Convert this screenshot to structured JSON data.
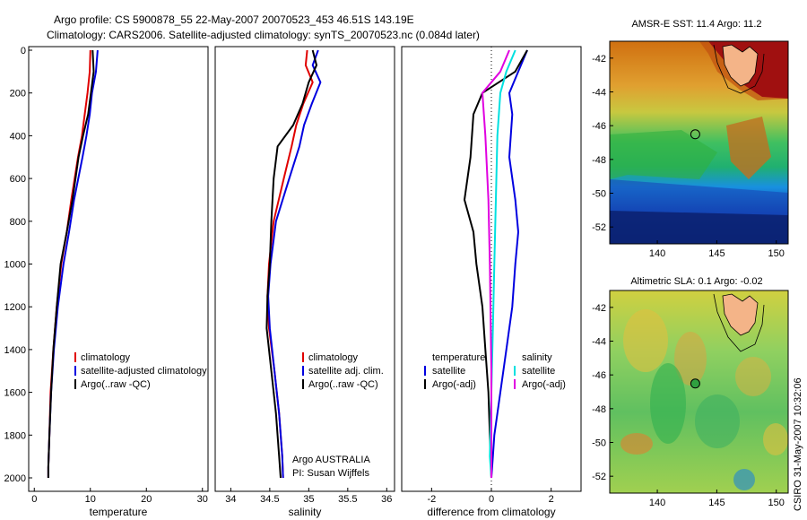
{
  "title_line1": "Argo profile: CS 5900878_55 22-May-2007 20070523_453 46.51S 143.19E",
  "title_line2": "Climatology: CARS2006. Satellite-adjusted climatology: synTS_20070523.nc (0.084d later)",
  "side_label": "CSIRO 31-May-2007 10:32:06",
  "colors": {
    "climatology": "#e00000",
    "satellite": "#0000e0",
    "argo": "#000000",
    "sal_sat": "#00e0e0",
    "sal_argo": "#e000e0"
  },
  "chart_data": [
    {
      "type": "line",
      "name": "temperature-profile",
      "xlabel": "temperature",
      "ylim": [
        2000,
        0
      ],
      "xlim": [
        -1,
        31
      ],
      "xticks": [
        0,
        10,
        20,
        30
      ],
      "yticks": [
        0,
        200,
        400,
        600,
        800,
        1000,
        1200,
        1400,
        1600,
        1800,
        2000
      ],
      "legend": [
        "climatology",
        "satellite-adjusted climatology",
        "Argo(..raw -QC)"
      ],
      "series": [
        {
          "name": "climatology",
          "color": "#e00000",
          "x": [
            10.0,
            9.9,
            9.5,
            9.0,
            8.5,
            7.8,
            6.6,
            5.8,
            4.8,
            4.0,
            3.4,
            2.9,
            2.7,
            2.5,
            2.5
          ],
          "y": [
            0,
            100,
            200,
            300,
            400,
            500,
            700,
            850,
            1000,
            1200,
            1400,
            1600,
            1800,
            1950,
            2000
          ]
        },
        {
          "name": "satellite-adjusted climatology",
          "color": "#0000e0",
          "x": [
            11.3,
            11.0,
            10.3,
            9.9,
            9.3,
            8.6,
            7.1,
            6.2,
            5.2,
            4.2,
            3.5,
            3.0,
            2.7,
            2.5,
            2.5
          ],
          "y": [
            0,
            100,
            200,
            300,
            400,
            500,
            700,
            850,
            1000,
            1200,
            1400,
            1600,
            1800,
            1950,
            2000
          ]
        },
        {
          "name": "Argo(..raw -QC)",
          "color": "#000000",
          "x": [
            10.4,
            10.6,
            10.1,
            9.6,
            8.7,
            7.9,
            6.8,
            5.8,
            4.7,
            4.0,
            3.4,
            3.0,
            2.7,
            2.5,
            2.5
          ],
          "y": [
            0,
            100,
            200,
            300,
            400,
            500,
            700,
            850,
            1000,
            1200,
            1400,
            1600,
            1800,
            1950,
            2000
          ]
        }
      ]
    },
    {
      "type": "line",
      "name": "salinity-profile",
      "xlabel": "salinity",
      "ylim": [
        2000,
        0
      ],
      "xlim": [
        33.8,
        36.1
      ],
      "xticks": [
        34,
        34.5,
        35,
        35.5,
        36
      ],
      "xticklabels": [
        "34",
        "34.5",
        "35",
        "35.5",
        "36"
      ],
      "legend": [
        "climatology",
        "satellite adj. clim.",
        "Argo(..raw -QC)"
      ],
      "annotation": [
        "Argo AUSTRALIA",
        "PI: Susan Wijffels"
      ],
      "series": [
        {
          "name": "climatology",
          "color": "#e00000",
          "x": [
            34.98,
            34.96,
            35.05,
            34.93,
            34.84,
            34.78,
            34.68,
            34.55,
            34.49,
            34.47,
            34.49,
            34.56,
            34.62,
            34.66,
            34.67
          ],
          "y": [
            0,
            70,
            150,
            250,
            350,
            450,
            600,
            800,
            1000,
            1150,
            1300,
            1500,
            1700,
            1900,
            2000
          ]
        },
        {
          "name": "satellite adj. clim.",
          "color": "#0000e0",
          "x": [
            35.12,
            35.05,
            35.15,
            35.04,
            34.94,
            34.88,
            34.75,
            34.58,
            34.51,
            34.48,
            34.5,
            34.56,
            34.62,
            34.66,
            34.67
          ],
          "y": [
            0,
            70,
            150,
            250,
            350,
            450,
            600,
            800,
            1000,
            1150,
            1300,
            1500,
            1700,
            1900,
            2000
          ]
        },
        {
          "name": "Argo(..raw -QC)",
          "color": "#000000",
          "x": [
            35.05,
            35.1,
            35.0,
            34.92,
            34.8,
            34.6,
            34.55,
            34.52,
            34.5,
            34.47,
            34.46,
            34.52,
            34.58,
            34.62,
            34.64
          ],
          "y": [
            0,
            70,
            150,
            250,
            350,
            450,
            600,
            800,
            1000,
            1150,
            1300,
            1500,
            1700,
            1900,
            2000
          ]
        }
      ]
    },
    {
      "type": "line",
      "name": "difference-profile",
      "xlabel": "difference from climatology",
      "ylim": [
        2000,
        0
      ],
      "xlim": [
        -3,
        3
      ],
      "xticks": [
        -2,
        0,
        2
      ],
      "xticklabels": [
        "-2",
        "0",
        "2"
      ],
      "legend_titles": [
        "temperature",
        "salinity"
      ],
      "legend": [
        "satellite",
        "Argo(-adj)",
        "satellite",
        "Argo(-adj)"
      ],
      "series": [
        {
          "name": "temperature satellite",
          "color": "#0000e0",
          "x": [
            1.2,
            0.9,
            0.6,
            0.7,
            0.6,
            0.8,
            0.9,
            0.8,
            0.7,
            0.5,
            0.3,
            0.1,
            0.05,
            0.0
          ],
          "y": [
            0,
            100,
            200,
            300,
            500,
            700,
            850,
            1000,
            1200,
            1400,
            1600,
            1800,
            1900,
            2000
          ]
        },
        {
          "name": "temperature Argo(-adj)",
          "color": "#000000",
          "x": [
            1.2,
            0.8,
            -0.3,
            -0.6,
            -0.7,
            -0.9,
            -0.6,
            -0.5,
            -0.3,
            -0.2,
            -0.1,
            -0.05,
            0.0
          ],
          "y": [
            0,
            100,
            200,
            300,
            500,
            700,
            850,
            1000,
            1200,
            1400,
            1600,
            1800,
            2000
          ]
        },
        {
          "name": "salinity satellite",
          "color": "#00e0e0",
          "x": [
            0.8,
            0.5,
            0.3,
            0.2,
            0.15,
            0.1,
            0.05,
            0.0,
            -0.05,
            0.0
          ],
          "y": [
            0,
            100,
            200,
            400,
            700,
            1000,
            1300,
            1600,
            1900,
            2000
          ]
        },
        {
          "name": "salinity Argo(-adj)",
          "color": "#e000e0",
          "x": [
            0.6,
            0.3,
            -0.3,
            -0.2,
            -0.1,
            -0.05,
            0.0,
            0.0
          ],
          "y": [
            0,
            100,
            200,
            400,
            700,
            1000,
            1500,
            2000
          ]
        }
      ]
    },
    {
      "type": "heatmap",
      "name": "sst-map",
      "title": "AMSR-E SST: 11.4  Argo: 11.2",
      "xlim": [
        136,
        151
      ],
      "ylim": [
        -53,
        -41
      ],
      "xticks": [
        140,
        145,
        150
      ],
      "yticks": [
        -42,
        -44,
        -46,
        -48,
        -50,
        -52
      ],
      "yticklabels": [
        "-42",
        "-44",
        "-46",
        "-48",
        "-50",
        "-52"
      ],
      "marker": {
        "lon": 143.19,
        "lat": -46.51
      }
    },
    {
      "type": "heatmap",
      "name": "sla-map",
      "title": "Altimetric SLA: 0.1  Argo: -0.02",
      "xlim": [
        136,
        151
      ],
      "ylim": [
        -53,
        -41
      ],
      "xticks": [
        140,
        145,
        150
      ],
      "yticks": [
        -42,
        -44,
        -46,
        -48,
        -50,
        -52
      ],
      "yticklabels": [
        "-42",
        "-44",
        "-46",
        "-48",
        "-50",
        "-52"
      ],
      "marker": {
        "lon": 143.19,
        "lat": -46.51
      }
    }
  ]
}
